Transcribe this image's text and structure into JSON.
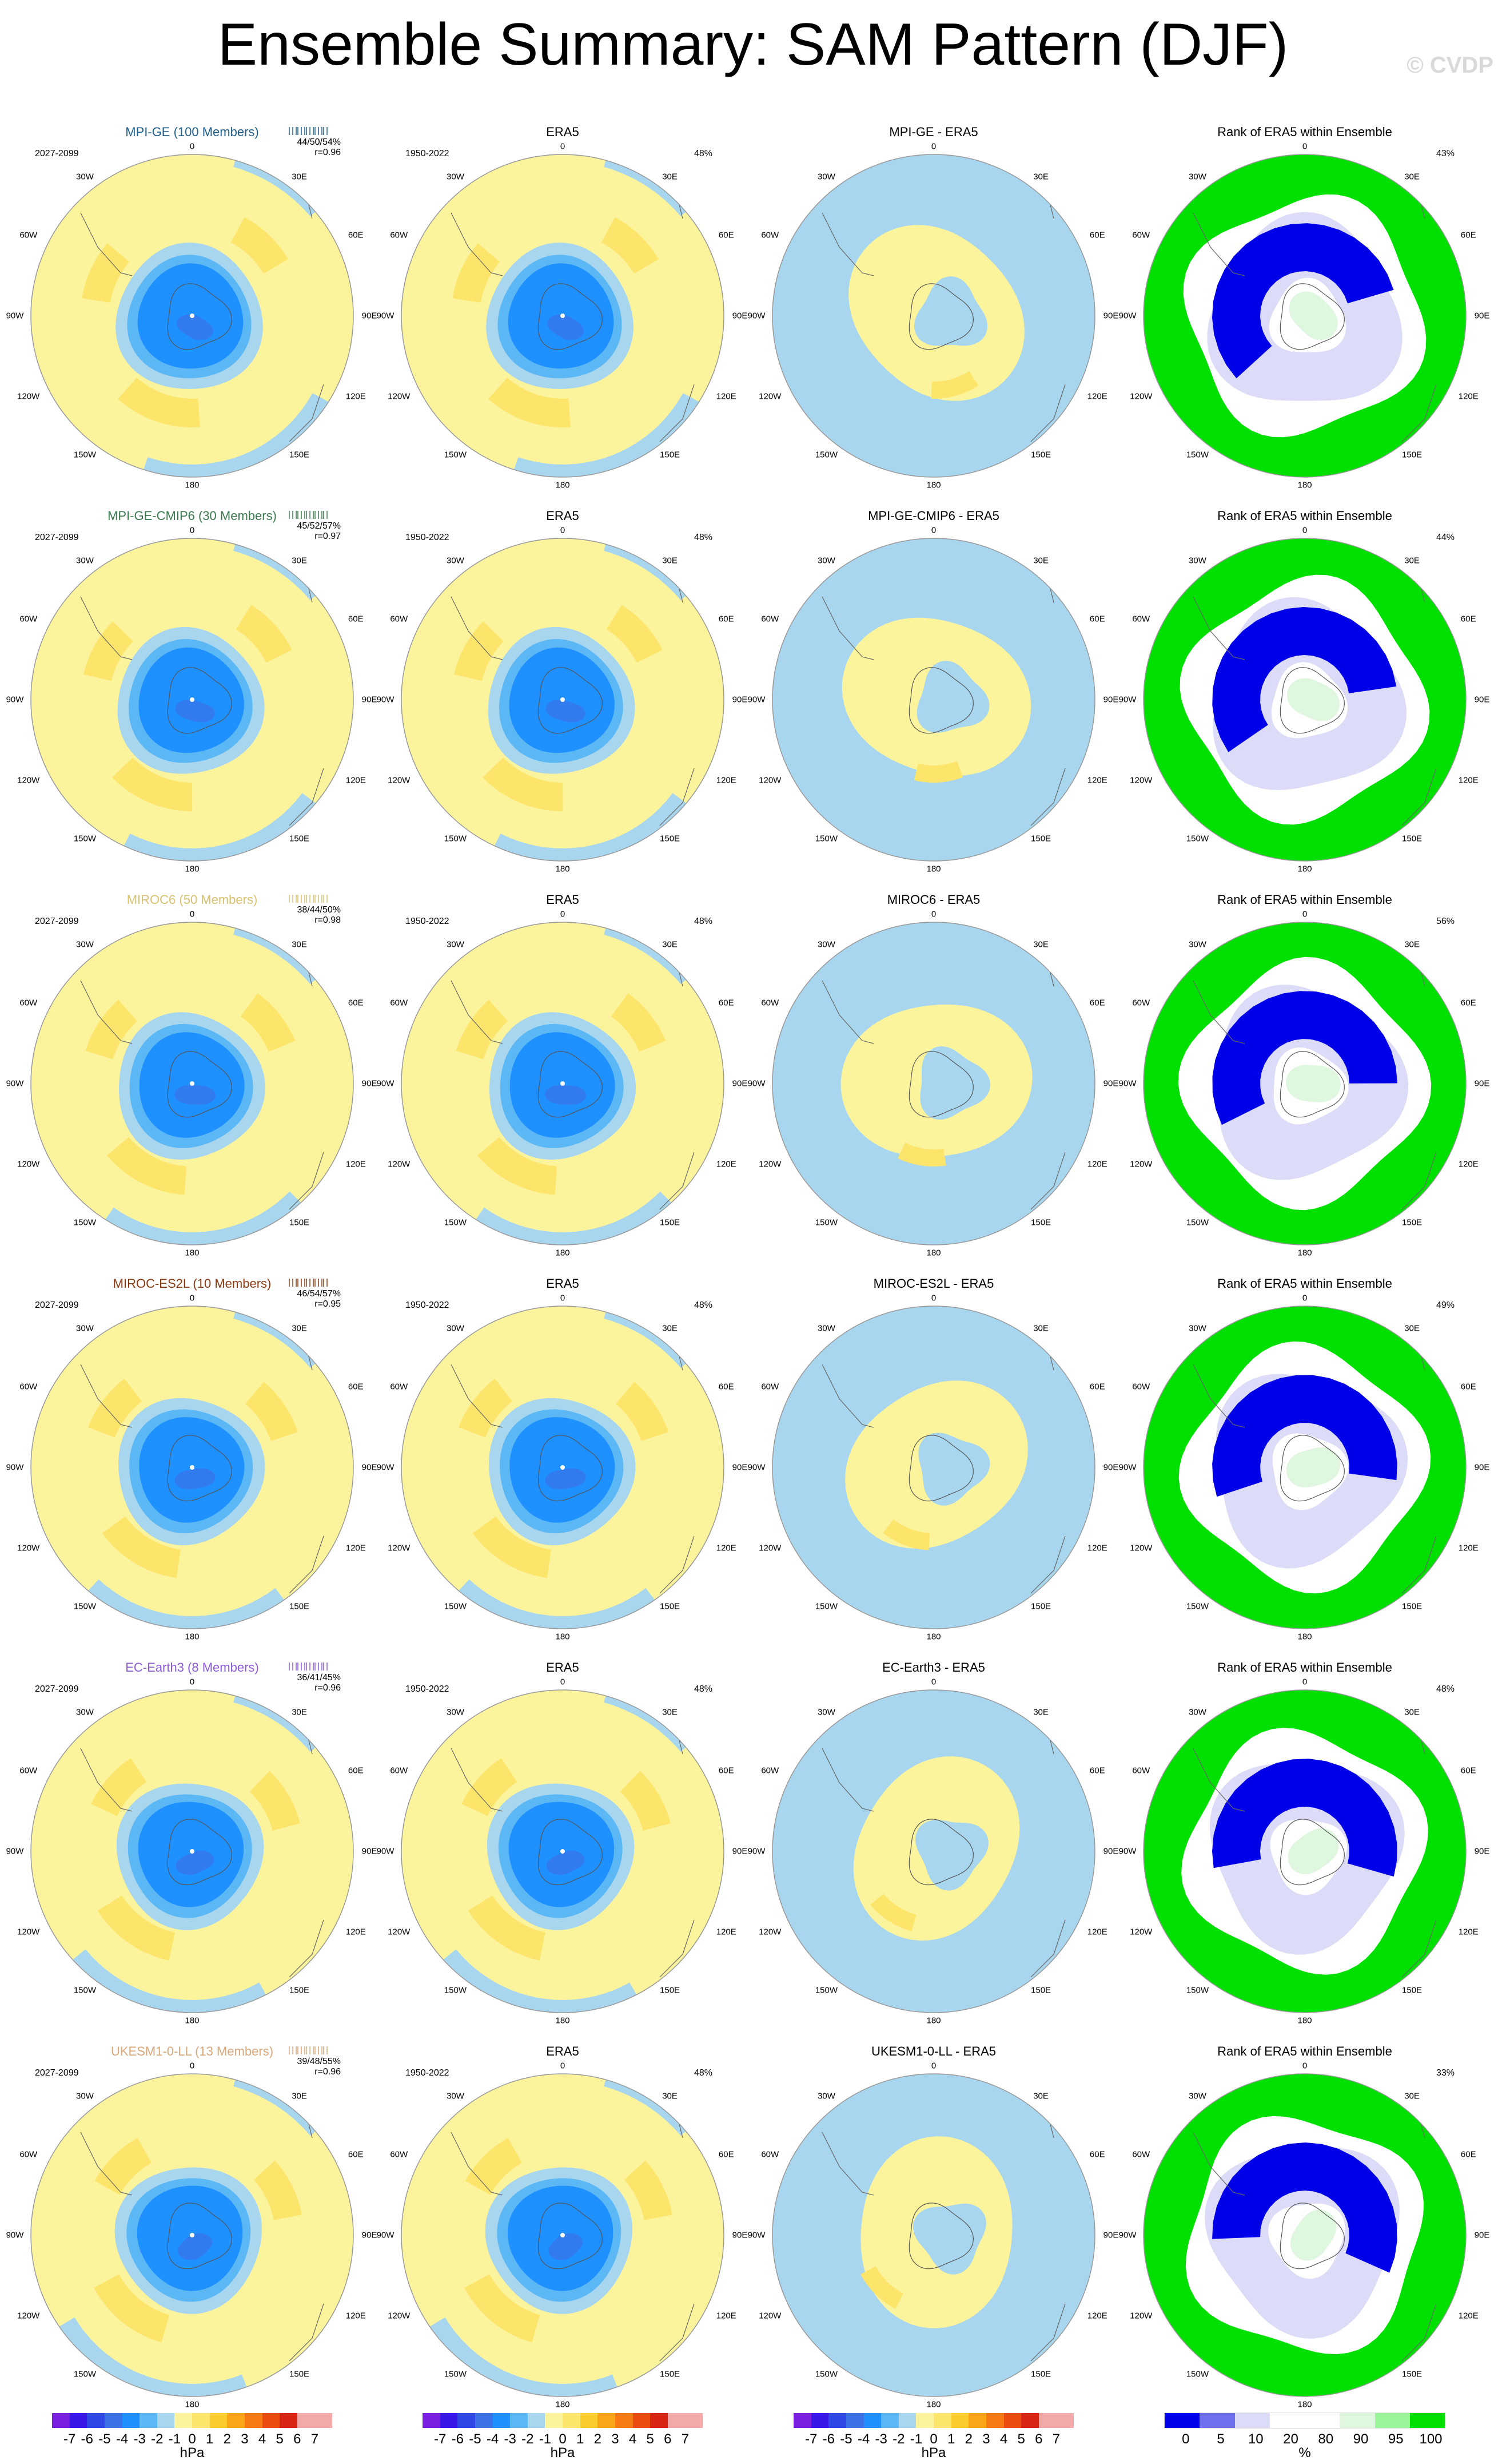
{
  "title": "Ensemble Summary: SAM Pattern (DJF)",
  "watermark": "© CVDP",
  "colors": {
    "neg7": "#7a1fe0",
    "neg6": "#3a17e6",
    "neg5": "#2f48e6",
    "neg4": "#3b72e8",
    "neg3": "#1e90ff",
    "neg2": "#5cb8f5",
    "neg1": "#a8d6ef",
    "pos0": "#fbf49c",
    "pos1": "#fde46a",
    "pos2": "#fccb2e",
    "pos3": "#fba617",
    "pos4": "#f77b12",
    "pos5": "#ec4b10",
    "pos6": "#d92514",
    "pos7": "#f4a9a9",
    "rank_low": "#0000e8",
    "rank_mid": "#7070ee",
    "rank_lt": "#dcdcf8",
    "rank_white": "#ffffff",
    "rank_glt": "#dff7df",
    "rank_g": "#9af59a",
    "rank_high": "#00e000"
  },
  "rows": [
    {
      "model": "MPI-GE (100 Members)",
      "color": "#1f5f8b",
      "period": "2027-2099",
      "stats": "44/50/54%",
      "r": "r=0.96",
      "diff_title": "MPI-GE - ERA5",
      "rank_pct": "43%"
    },
    {
      "model": "MPI-GE-CMIP6 (30 Members)",
      "color": "#3c7a4f",
      "period": "2027-2099",
      "stats": "45/52/57%",
      "r": "r=0.97",
      "diff_title": "MPI-GE-CMIP6 - ERA5",
      "rank_pct": "44%"
    },
    {
      "model": "MIROC6 (50 Members)",
      "color": "#d8c170",
      "period": "2027-2099",
      "stats": "38/44/50%",
      "r": "r=0.98",
      "diff_title": "MIROC6 - ERA5",
      "rank_pct": "56%"
    },
    {
      "model": "MIROC-ES2L (10 Members)",
      "color": "#8a3a12",
      "period": "2027-2099",
      "stats": "46/54/57%",
      "r": "r=0.95",
      "diff_title": "MIROC-ES2L - ERA5",
      "rank_pct": "49%"
    },
    {
      "model": "EC-Earth3 (8 Members)",
      "color": "#8b5cd6",
      "period": "2027-2099",
      "stats": "36/41/45%",
      "r": "r=0.96",
      "diff_title": "EC-Earth3 - ERA5",
      "rank_pct": "48%"
    },
    {
      "model": "UKESM1-0-LL (13 Members)",
      "color": "#d8a87a",
      "period": "2027-2099",
      "stats": "39/48/55%",
      "r": "r=0.96",
      "diff_title": "UKESM1-0-LL - ERA5",
      "rank_pct": "33%"
    }
  ],
  "era5": {
    "title": "ERA5",
    "period": "1950-2022",
    "pct": "48%"
  },
  "rank_title": "Rank of ERA5 within Ensemble",
  "lon_labels": {
    "top": "0",
    "tr": "30E",
    "r1": "60E",
    "r2": "90E",
    "r3": "120E",
    "br": "150E",
    "bottom": "180",
    "bl": "150W",
    "l3": "120W",
    "l2": "90W",
    "l1": "60W",
    "tl": "30W"
  },
  "colorbar_hpa": {
    "ticks": [
      "-7",
      "-6",
      "-5",
      "-4",
      "-3",
      "-2",
      "-1",
      "0",
      "1",
      "2",
      "3",
      "4",
      "5",
      "6",
      "7"
    ],
    "unit": "hPa"
  },
  "colorbar_rank": {
    "ticks": [
      "0",
      "5",
      "10",
      "20",
      "80",
      "90",
      "95",
      "100"
    ],
    "unit": "%"
  }
}
